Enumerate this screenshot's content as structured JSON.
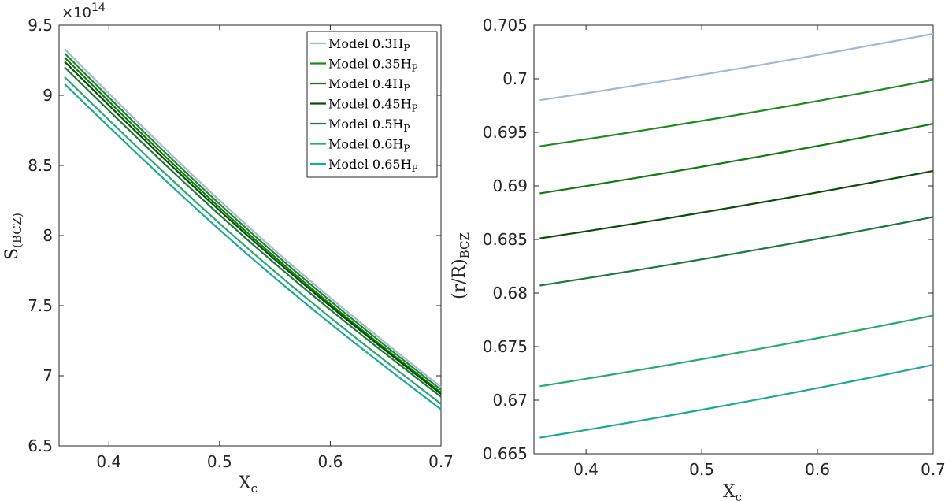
{
  "colors": {
    "m03": "#9fb9d6",
    "m035": "#1f8a1f",
    "m04": "#127a12",
    "m045": "#0a4d0a",
    "m05": "#1e7a3a",
    "m06": "#28ac6a",
    "m065": "#1ea89a"
  },
  "chart_data": [
    {
      "type": "line",
      "xlabel_main": "X",
      "xlabel_sub": "c",
      "ylabel_main": "S",
      "ylabel_sub": "(BCZ)",
      "exponent_base": "×10",
      "exponent_power": "14",
      "xlim": [
        0.355,
        0.7
      ],
      "ylim": [
        6.5,
        9.5
      ],
      "xticks": [
        0.4,
        0.5,
        0.6,
        0.7
      ],
      "xtick_labels": [
        "0.4",
        "0.5",
        "0.6",
        "0.7"
      ],
      "yticks": [
        6.5,
        7,
        7.5,
        8,
        8.5,
        9,
        9.5
      ],
      "ytick_labels": [
        "6.5",
        "7",
        "7.5",
        "8",
        "8.5",
        "9",
        "9.5"
      ],
      "legend_position": "top-right",
      "series": [
        {
          "name": "Model 0.3",
          "hp": "H",
          "hps": "P",
          "color_key": "m03",
          "x_start": 0.36,
          "x_end": 0.7,
          "y_start": 9.33,
          "y_end": 6.92
        },
        {
          "name": "Model 0.35",
          "hp": "H",
          "hps": "P",
          "color_key": "m035",
          "x_start": 0.36,
          "x_end": 0.7,
          "y_start": 9.3,
          "y_end": 6.9
        },
        {
          "name": "Model 0.4",
          "hp": "H",
          "hps": "P",
          "color_key": "m04",
          "x_start": 0.36,
          "x_end": 0.7,
          "y_start": 9.27,
          "y_end": 6.88
        },
        {
          "name": "Model 0.45",
          "hp": "H",
          "hps": "P",
          "color_key": "m045",
          "x_start": 0.36,
          "x_end": 0.7,
          "y_start": 9.24,
          "y_end": 6.87
        },
        {
          "name": "Model 0.5",
          "hp": "H",
          "hps": "P",
          "color_key": "m05",
          "x_start": 0.36,
          "x_end": 0.7,
          "y_start": 9.2,
          "y_end": 6.85
        },
        {
          "name": "Model 0.6",
          "hp": "H",
          "hps": "P",
          "color_key": "m06",
          "x_start": 0.36,
          "x_end": 0.7,
          "y_start": 9.13,
          "y_end": 6.8
        },
        {
          "name": "Model 0.65",
          "hp": "H",
          "hps": "P",
          "color_key": "m065",
          "x_start": 0.36,
          "x_end": 0.7,
          "y_start": 9.08,
          "y_end": 6.76
        }
      ]
    },
    {
      "type": "line",
      "xlabel_main": "X",
      "xlabel_sub": "c",
      "ylabel_main": "(r/R)",
      "ylabel_sub": "BCZ",
      "xlim": [
        0.355,
        0.7
      ],
      "ylim": [
        0.665,
        0.705
      ],
      "xticks": [
        0.4,
        0.5,
        0.6,
        0.7
      ],
      "xtick_labels": [
        "0.4",
        "0.5",
        "0.6",
        "0.7"
      ],
      "yticks": [
        0.665,
        0.67,
        0.675,
        0.68,
        0.685,
        0.69,
        0.695,
        0.7,
        0.705
      ],
      "ytick_labels": [
        "0.665",
        "0.67",
        "0.675",
        "0.68",
        "0.685",
        "0.69",
        "0.695",
        "0.7",
        "0.705"
      ],
      "series": [
        {
          "name": "Model 0.3HP",
          "color_key": "m03",
          "x_start": 0.36,
          "x_end": 0.7,
          "y_start": 0.698,
          "y_end": 0.7042
        },
        {
          "name": "Model 0.35HP",
          "color_key": "m035",
          "x_start": 0.36,
          "x_end": 0.7,
          "y_start": 0.6937,
          "y_end": 0.6999
        },
        {
          "name": "Model 0.4HP",
          "color_key": "m04",
          "x_start": 0.36,
          "x_end": 0.7,
          "y_start": 0.6893,
          "y_end": 0.6958
        },
        {
          "name": "Model 0.45HP",
          "color_key": "m045",
          "x_start": 0.36,
          "x_end": 0.7,
          "y_start": 0.6851,
          "y_end": 0.6914
        },
        {
          "name": "Model 0.5HP",
          "color_key": "m05",
          "x_start": 0.36,
          "x_end": 0.7,
          "y_start": 0.6807,
          "y_end": 0.6871
        },
        {
          "name": "Model 0.6HP",
          "color_key": "m06",
          "x_start": 0.36,
          "x_end": 0.7,
          "y_start": 0.6713,
          "y_end": 0.6779
        },
        {
          "name": "Model 0.65HP",
          "color_key": "m065",
          "x_start": 0.36,
          "x_end": 0.7,
          "y_start": 0.6665,
          "y_end": 0.6733
        }
      ]
    }
  ]
}
